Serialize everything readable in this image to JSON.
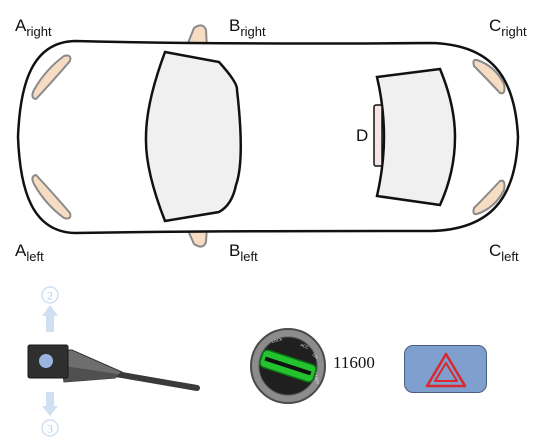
{
  "lamps": {
    "a_right": {
      "base": "A",
      "side": "right"
    },
    "b_right": {
      "base": "B",
      "side": "right"
    },
    "c_right": {
      "base": "C",
      "side": "right"
    },
    "a_left": {
      "base": "A",
      "side": "left"
    },
    "b_left": {
      "base": "B",
      "side": "left"
    },
    "c_left": {
      "base": "C",
      "side": "left"
    },
    "d": {
      "base": "D"
    }
  },
  "stalk": {
    "up_number": "2",
    "down_number": "3"
  },
  "odometer": {
    "value": "11600"
  },
  "colors": {
    "car_body": "#ffffff",
    "car_outline": "#111111",
    "window_fill": "#f0f0f0",
    "lamp_fill": "#f6dcc2",
    "lamp_outline": "#8a8a8a",
    "ignition_key": "#22c32e",
    "hazard_button": "#7f9fce",
    "hazard_triangle": "#d9282f",
    "arrow_light": "#cfe0f3"
  },
  "icons": {
    "ignition": "ignition-switch-icon",
    "hazard": "hazard-warning-triangle-icon",
    "stalk": "turn-signal-stalk-icon"
  }
}
